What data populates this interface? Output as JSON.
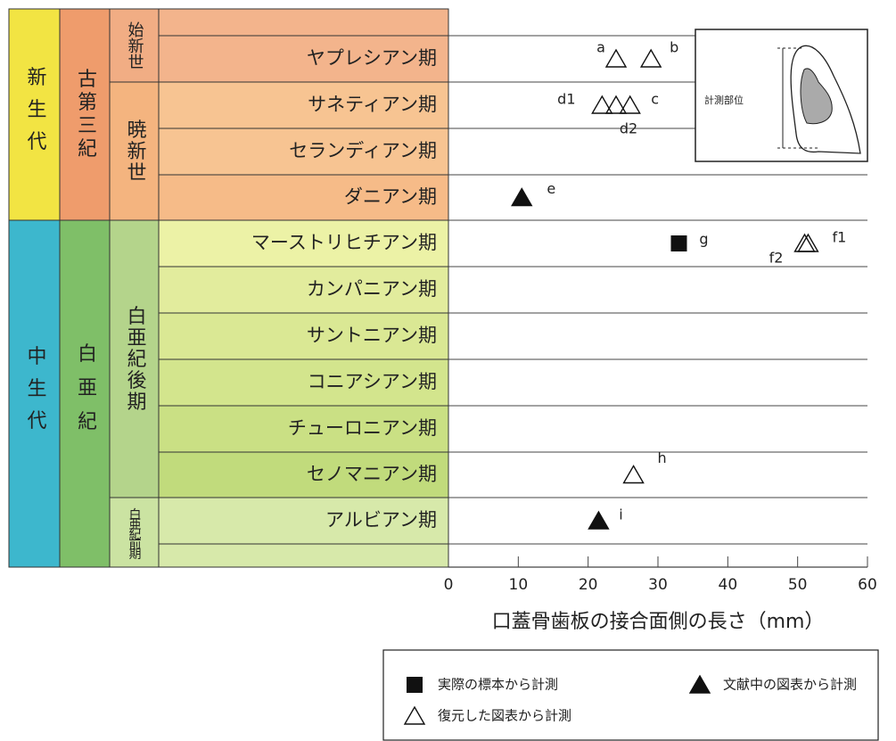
{
  "chart_data": {
    "type": "scatter",
    "xlabel": "口蓋骨歯板の接合面側の長さ（mm）",
    "xlim": [
      0,
      60
    ],
    "xticks": [
      0,
      10,
      20,
      30,
      40,
      50,
      60
    ],
    "inset_label": "計測部位",
    "eras": [
      {
        "label": "新生代",
        "color": "#f2e443"
      },
      {
        "label": "中生代",
        "color": "#3db7cd"
      }
    ],
    "periods": [
      {
        "label": "古第三紀",
        "color": "#ef9c6c"
      },
      {
        "label": "白亜紀",
        "color": "#7fbf68"
      }
    ],
    "epochs": [
      {
        "label": "始新世",
        "color": "#f1ad84"
      },
      {
        "label": "暁新世",
        "color": "#f4b47f"
      },
      {
        "label": "白亜紀後期",
        "color": "#b4d48b"
      },
      {
        "label": "白亜紀前期",
        "color": "#cbe3a2"
      }
    ],
    "categories": [
      null,
      "ヤプレシアン期",
      "サネティアン期",
      "セランディアン期",
      "ダニアン期",
      "マーストリヒチアン期",
      "カンパニアン期",
      "サントニアン期",
      "コニアシアン期",
      "チューロニアン期",
      "セノマニアン期",
      "アルビアン期",
      null
    ],
    "stage_colors": [
      "#f3b48c",
      "#f3b48c",
      "#f7c492",
      "#f7c492",
      "#f6bb88",
      "#ecf2a6",
      "#e2ec9d",
      "#dae894",
      "#d3e58d",
      "#cae084",
      "#c1db7c",
      "#d7e9aa",
      "#d7e9aa"
    ],
    "series": [
      {
        "name": "実際の標本から計測",
        "marker": "square",
        "color": "#111111",
        "x": [
          33
        ],
        "y": [
          "マーストリヒチアン期"
        ],
        "labels": [
          "g"
        ]
      },
      {
        "name": "文献中の図表から計測",
        "marker": "triangle-filled",
        "color": "#111111",
        "x": [
          10.5,
          21.5
        ],
        "y": [
          "ダニアン期",
          "アルビアン期"
        ],
        "labels": [
          "e",
          "i"
        ]
      },
      {
        "name": "復元した図表から計測",
        "marker": "triangle-open",
        "color": "#111111",
        "x": [
          24,
          29,
          22,
          26,
          24,
          51.5,
          51,
          26.5
        ],
        "y": [
          "ヤプレシアン期",
          "ヤプレシアン期",
          "サネティアン期",
          "サネティアン期",
          "サネティアン期",
          "マーストリヒチアン期",
          "マーストリヒチアン期",
          "セノマニアン期"
        ],
        "labels": [
          "a",
          "b",
          "d1",
          "c",
          "d2",
          "f1",
          "f2",
          "h"
        ]
      }
    ]
  }
}
